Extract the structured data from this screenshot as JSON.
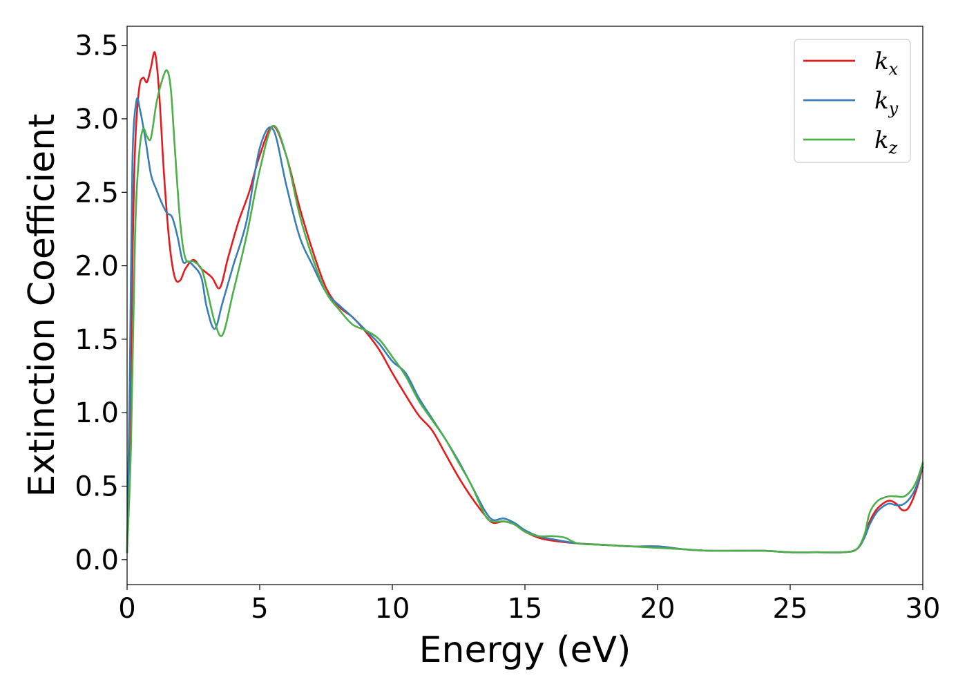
{
  "chart_data": {
    "type": "line",
    "title": "",
    "xlabel": "Energy (eV)",
    "ylabel": "Extinction Coefficient",
    "xlim": [
      0,
      30
    ],
    "ylim": [
      -0.17,
      3.63
    ],
    "xticks": [
      0,
      5,
      10,
      15,
      20,
      25,
      30
    ],
    "xtick_labels": [
      "0",
      "5",
      "10",
      "15",
      "20",
      "25",
      "30"
    ],
    "yticks": [
      0.0,
      0.5,
      1.0,
      1.5,
      2.0,
      2.5,
      3.0,
      3.5
    ],
    "ytick_labels": [
      "0.0",
      "0.5",
      "1.0",
      "1.5",
      "2.0",
      "2.5",
      "3.0",
      "3.5"
    ],
    "grid": false,
    "legend_position": "top-right",
    "series": [
      {
        "name": "k_x",
        "label_base": "k",
        "label_sub": "x",
        "color": "#e41a1c",
        "x": [
          0,
          0.1,
          0.2,
          0.3,
          0.45,
          0.6,
          0.75,
          0.9,
          1.05,
          1.2,
          1.4,
          1.6,
          1.8,
          2.0,
          2.2,
          2.5,
          2.8,
          3.2,
          3.5,
          3.8,
          4.2,
          4.6,
          5.0,
          5.5,
          6.0,
          6.5,
          7.0,
          7.5,
          8.0,
          8.5,
          9.0,
          9.5,
          10.0,
          10.5,
          11.0,
          11.5,
          12.0,
          12.5,
          13.0,
          13.5,
          13.8,
          14.2,
          14.6,
          15.0,
          15.5,
          16.0,
          17.0,
          18.0,
          19.0,
          20.0,
          21.0,
          22.0,
          23.0,
          24.0,
          25.0,
          26.0,
          27.0,
          27.5,
          27.8,
          28.0,
          28.3,
          28.7,
          29.0,
          29.2,
          29.4,
          29.6,
          29.8,
          30.0
        ],
        "y": [
          0.05,
          0.8,
          2.0,
          2.8,
          3.2,
          3.28,
          3.25,
          3.35,
          3.45,
          3.2,
          2.6,
          2.15,
          1.92,
          1.9,
          1.98,
          2.04,
          1.98,
          1.92,
          1.85,
          2.05,
          2.3,
          2.5,
          2.75,
          2.95,
          2.75,
          2.4,
          2.1,
          1.85,
          1.72,
          1.65,
          1.55,
          1.43,
          1.27,
          1.12,
          0.98,
          0.88,
          0.72,
          0.56,
          0.42,
          0.3,
          0.25,
          0.26,
          0.24,
          0.19,
          0.15,
          0.13,
          0.11,
          0.1,
          0.09,
          0.09,
          0.07,
          0.06,
          0.06,
          0.06,
          0.05,
          0.05,
          0.05,
          0.07,
          0.15,
          0.26,
          0.35,
          0.4,
          0.38,
          0.34,
          0.34,
          0.4,
          0.5,
          0.63
        ]
      },
      {
        "name": "k_y",
        "label_base": "k",
        "label_sub": "y",
        "color": "#377eb8",
        "x": [
          0,
          0.1,
          0.2,
          0.35,
          0.5,
          0.7,
          0.9,
          1.1,
          1.3,
          1.5,
          1.7,
          1.9,
          2.1,
          2.3,
          2.5,
          2.8,
          3.0,
          3.3,
          3.6,
          4.0,
          4.5,
          5.0,
          5.5,
          6.0,
          6.5,
          7.0,
          7.5,
          8.0,
          8.5,
          9.0,
          9.5,
          10.0,
          10.5,
          11.0,
          11.5,
          12.0,
          12.5,
          13.0,
          13.5,
          13.8,
          14.2,
          14.6,
          15.0,
          15.5,
          16.0,
          17.0,
          18.0,
          19.0,
          20.0,
          21.0,
          22.0,
          23.0,
          24.0,
          25.0,
          26.0,
          27.0,
          27.5,
          27.8,
          28.0,
          28.3,
          28.7,
          29.0,
          29.3,
          29.6,
          29.8,
          30.0
        ],
        "y": [
          0.05,
          1.2,
          2.7,
          3.12,
          3.05,
          2.85,
          2.62,
          2.52,
          2.43,
          2.36,
          2.33,
          2.2,
          2.03,
          2.03,
          2.0,
          1.92,
          1.72,
          1.57,
          1.75,
          2.0,
          2.3,
          2.8,
          2.93,
          2.55,
          2.2,
          2.0,
          1.82,
          1.73,
          1.65,
          1.56,
          1.47,
          1.35,
          1.27,
          1.1,
          0.96,
          0.82,
          0.67,
          0.5,
          0.33,
          0.27,
          0.28,
          0.25,
          0.2,
          0.16,
          0.14,
          0.11,
          0.1,
          0.09,
          0.09,
          0.07,
          0.06,
          0.06,
          0.06,
          0.05,
          0.05,
          0.05,
          0.07,
          0.15,
          0.24,
          0.33,
          0.38,
          0.37,
          0.38,
          0.44,
          0.52,
          0.65
        ]
      },
      {
        "name": "k_z",
        "label_base": "k",
        "label_sub": "z",
        "color": "#4daf4a",
        "x": [
          0,
          0.15,
          0.3,
          0.45,
          0.6,
          0.75,
          0.9,
          1.1,
          1.3,
          1.5,
          1.65,
          1.8,
          2.0,
          2.2,
          2.5,
          2.8,
          3.0,
          3.3,
          3.6,
          4.0,
          4.5,
          5.0,
          5.5,
          6.0,
          6.5,
          7.0,
          7.5,
          8.0,
          8.5,
          9.0,
          9.5,
          10.0,
          10.5,
          11.0,
          11.5,
          12.0,
          12.5,
          13.0,
          13.5,
          13.8,
          14.2,
          14.6,
          15.0,
          15.5,
          16.0,
          16.5,
          17.0,
          18.0,
          19.0,
          20.0,
          21.0,
          22.0,
          23.0,
          24.0,
          25.0,
          26.0,
          27.0,
          27.5,
          27.8,
          28.0,
          28.3,
          28.7,
          29.0,
          29.3,
          29.6,
          29.8,
          30.0
        ],
        "y": [
          0.05,
          0.8,
          2.2,
          2.75,
          2.93,
          2.88,
          2.87,
          3.1,
          3.25,
          3.33,
          3.2,
          2.8,
          2.3,
          2.05,
          2.03,
          1.98,
          1.85,
          1.62,
          1.53,
          1.82,
          2.2,
          2.65,
          2.95,
          2.75,
          2.35,
          2.05,
          1.82,
          1.7,
          1.6,
          1.56,
          1.5,
          1.38,
          1.25,
          1.08,
          0.95,
          0.82,
          0.66,
          0.5,
          0.3,
          0.26,
          0.26,
          0.24,
          0.19,
          0.16,
          0.16,
          0.15,
          0.11,
          0.1,
          0.09,
          0.08,
          0.07,
          0.06,
          0.06,
          0.06,
          0.05,
          0.05,
          0.05,
          0.07,
          0.17,
          0.32,
          0.4,
          0.43,
          0.43,
          0.43,
          0.48,
          0.55,
          0.66
        ]
      }
    ]
  }
}
